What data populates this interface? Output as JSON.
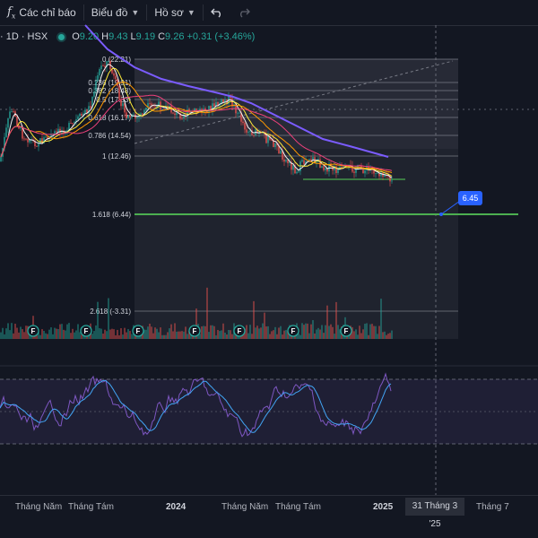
{
  "toolbar": {
    "indicators_label": "Các chỉ báo",
    "chart_type_label": "Biểu đồ",
    "account_label": "Hồ sơ"
  },
  "legend": {
    "symbol": "· 1D · HSX",
    "open_label": "O",
    "open": "9.20",
    "high_label": "H",
    "high": "9.43",
    "low_label": "L",
    "low": "9.19",
    "close_label": "C",
    "close": "9.26",
    "change": "+0.31 (+3.46%)"
  },
  "fib_levels": [
    {
      "label": "0 (22.21)"
    },
    {
      "label": "0.236 (19.91)"
    },
    {
      "label": "0.382 (18.48)"
    },
    {
      "label": "0.5 (17.33)"
    },
    {
      "label": "0.618 (16.17)"
    },
    {
      "label": "0.786 (14.54)"
    },
    {
      "label": "1 (12.46)"
    },
    {
      "label": "1.618 (6.44)"
    },
    {
      "label": "2.618 (-3.31)"
    }
  ],
  "price_tag": "6.45",
  "event_marker": "F",
  "time_axis": {
    "labels": [
      "Tháng Năm",
      "Tháng Tám",
      "2024",
      "Tháng Năm",
      "Tháng Tám",
      "2025",
      "Tháng 7"
    ],
    "highlight": "31 Tháng 3 '25"
  },
  "colors": {
    "background": "#131722",
    "up": "#26a69a",
    "down": "#ef5350",
    "ma_slow": "#7b5cff",
    "target_line": "#4caf50",
    "accent": "#2962ff"
  }
}
